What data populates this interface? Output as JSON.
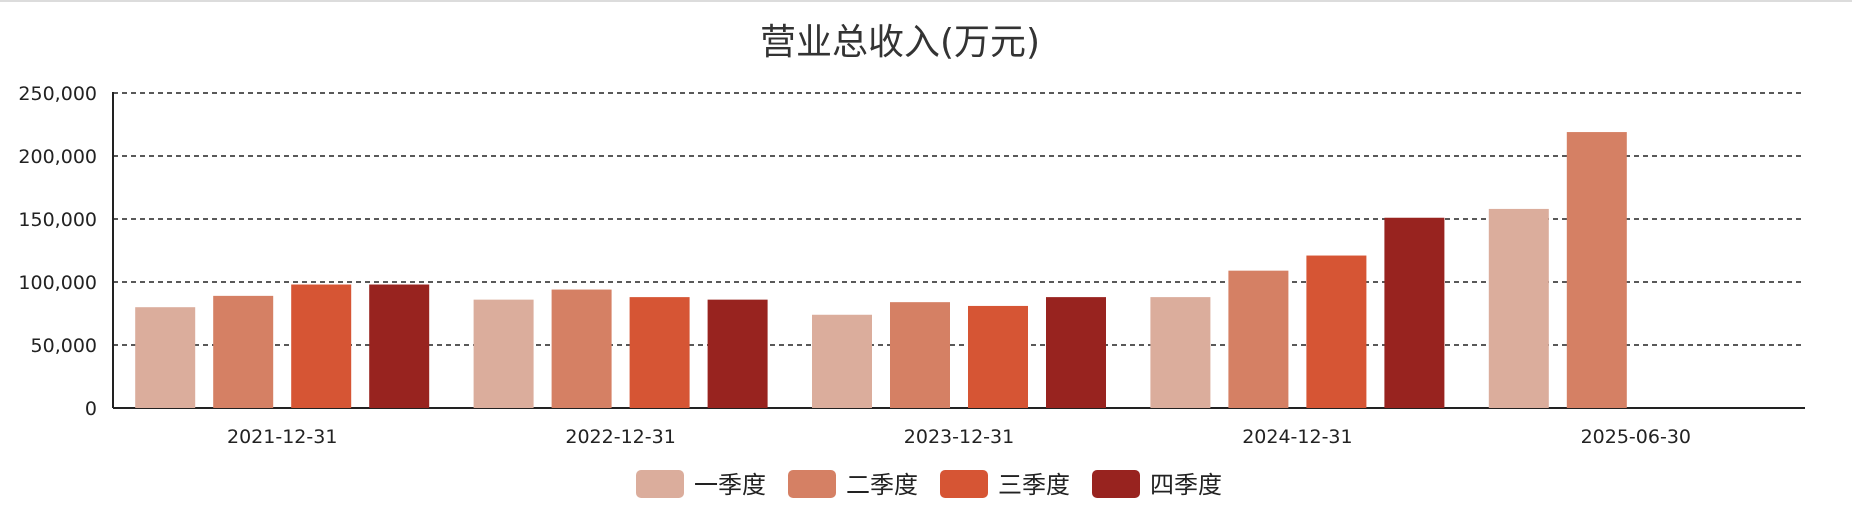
{
  "chart_data": {
    "type": "bar",
    "title": "营业总收入(万元)",
    "xlabel": "",
    "ylabel": "",
    "ylim": [
      0,
      250000
    ],
    "yticks": [
      0,
      50000,
      100000,
      150000,
      200000,
      250000
    ],
    "ytick_labels": [
      "0",
      "50,000",
      "100,000",
      "150,000",
      "200,000",
      "250,000"
    ],
    "grid": true,
    "legend_position": "bottom-center",
    "categories": [
      "2021-12-31",
      "2022-12-31",
      "2023-12-31",
      "2024-12-31",
      "2025-06-30"
    ],
    "series": [
      {
        "name": "一季度",
        "color": "#dbad9c",
        "values": [
          80000,
          86000,
          74000,
          88000,
          158000
        ]
      },
      {
        "name": "二季度",
        "color": "#d58064",
        "values": [
          89000,
          94000,
          84000,
          109000,
          219000
        ]
      },
      {
        "name": "三季度",
        "color": "#d65534",
        "values": [
          98000,
          88000,
          81000,
          121000,
          null
        ]
      },
      {
        "name": "四季度",
        "color": "#98231f",
        "values": [
          98000,
          86000,
          88000,
          151000,
          null
        ]
      }
    ]
  }
}
